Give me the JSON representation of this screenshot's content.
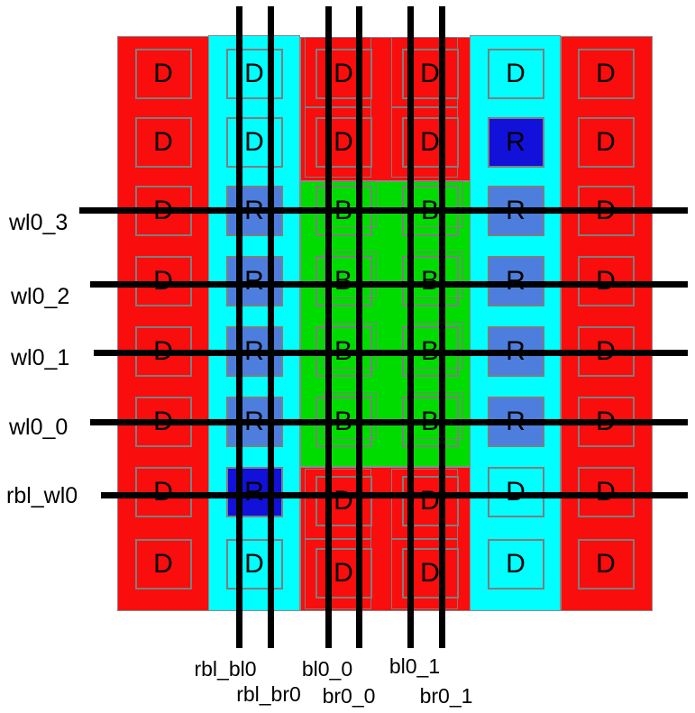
{
  "diagram_title": "",
  "colors": {
    "red": "#F90D0D",
    "cyan": "#00FFFF",
    "green": "#00DC00",
    "dark_blue": "#1211DA",
    "medium_blue": "#4D7EDD",
    "outline_gray": "#7E7E7E",
    "line_black": "#000000",
    "background": "#FFFFFF",
    "text": "#000000"
  },
  "wordlines": [
    {
      "label": "wl0_3"
    },
    {
      "label": "wl0_2"
    },
    {
      "label": "wl0_1"
    },
    {
      "label": "wl0_0"
    },
    {
      "label": "rbl_wl0"
    }
  ],
  "bitlines": [
    {
      "label": "rbl_bl0"
    },
    {
      "label": "rbl_br0"
    },
    {
      "label": "bl0_0"
    },
    {
      "label": "br0_0"
    },
    {
      "label": "bl0_1"
    },
    {
      "label": "br0_1"
    }
  ],
  "grid": {
    "rows": 8,
    "columns": 6,
    "cells": [
      [
        "D",
        "D",
        "D",
        "D",
        "D",
        "D"
      ],
      [
        "D",
        "D",
        "D",
        "D",
        "R:dark",
        "D"
      ],
      [
        "D",
        "R:medium",
        "B",
        "B",
        "R:medium",
        "D"
      ],
      [
        "D",
        "R:medium",
        "B",
        "B",
        "R:medium",
        "D"
      ],
      [
        "D",
        "R:medium",
        "B",
        "B",
        "R:medium",
        "D"
      ],
      [
        "D",
        "R:medium",
        "B",
        "B",
        "R:medium",
        "D"
      ],
      [
        "D",
        "R:dark",
        "D",
        "D",
        "D",
        "D"
      ],
      [
        "D",
        "D",
        "D",
        "D",
        "D",
        "D"
      ]
    ]
  }
}
